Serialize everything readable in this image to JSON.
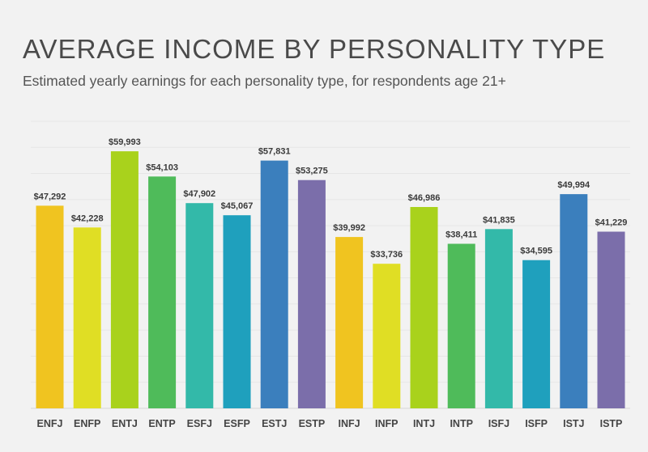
{
  "chart_data": {
    "type": "bar",
    "title": "AVERAGE INCOME BY PERSONALITY TYPE",
    "subtitle": "Estimated yearly earnings for each personality type, for respondents age 21+",
    "xlabel": "",
    "ylabel": "",
    "ylim": [
      0,
      67000
    ],
    "grid": true,
    "categories": [
      "ENFJ",
      "ENFP",
      "ENTJ",
      "ENTP",
      "ESFJ",
      "ESFP",
      "ESTJ",
      "ESTP",
      "INFJ",
      "INFP",
      "INTJ",
      "INTP",
      "ISFJ",
      "ISFP",
      "ISTJ",
      "ISTP"
    ],
    "values": [
      47292,
      42228,
      59993,
      54103,
      47902,
      45067,
      57831,
      53275,
      39992,
      33736,
      46986,
      38411,
      41835,
      34595,
      49994,
      41229
    ],
    "value_labels": [
      "$47,292",
      "$42,228",
      "$59,993",
      "$54,103",
      "$47,902",
      "$45,067",
      "$57,831",
      "$53,275",
      "$39,992",
      "$33,736",
      "$46,986",
      "$38,411",
      "$41,835",
      "$34,595",
      "$49,994",
      "$41,229"
    ],
    "colors": [
      "#f0c420",
      "#e0de24",
      "#a9d21c",
      "#4fbb5a",
      "#33b9a9",
      "#1fa0bd",
      "#3b7fbd",
      "#7b6eaa",
      "#f0c420",
      "#e0de24",
      "#a9d21c",
      "#4fbb5a",
      "#33b9a9",
      "#1fa0bd",
      "#3b7fbd",
      "#7b6eaa"
    ]
  }
}
